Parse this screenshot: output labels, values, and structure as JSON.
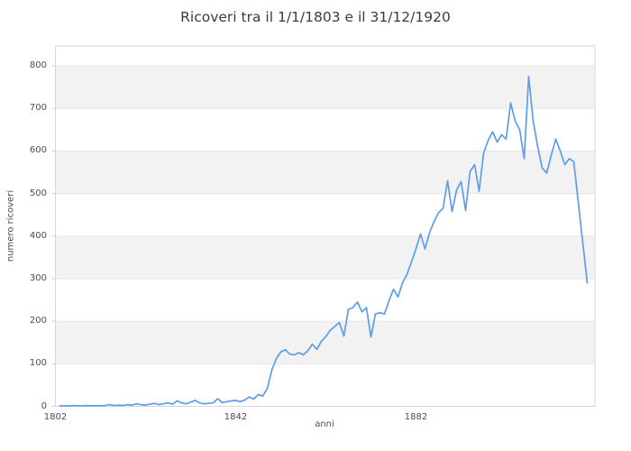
{
  "title": "Ricoveri tra il 1/1/1803 e il 31/12/1920",
  "axes": {
    "x_label": "anni",
    "y_label": "numero ricoveri",
    "x_tick_labels": [
      "1802",
      "1842",
      "1882"
    ],
    "y_tick_labels": [
      "0",
      "100",
      "200",
      "300",
      "400",
      "500",
      "600",
      "700",
      "800"
    ]
  },
  "colors": {
    "line": "#5f9cea",
    "band": "#f2f2f2",
    "grid": "#e7e7e7",
    "border": "#d6d6d6",
    "tick_mark": "#cfcfcf",
    "title_text": "#3c3c3c",
    "label_text": "#4d4d4d",
    "background": "#ffffff"
  },
  "chart_data": {
    "type": "line",
    "title": "Ricoveri tra il 1/1/1803 e il 31/12/1920",
    "xlabel": "anni",
    "ylabel": "numero ricoveri",
    "xlim": [
      1802,
      1922
    ],
    "ylim": [
      0,
      800
    ],
    "x_ticks": [
      1802,
      1842,
      1882
    ],
    "y_ticks": [
      0,
      100,
      200,
      300,
      400,
      500,
      600,
      700,
      800
    ],
    "grid": "horizontal-bands-alternating",
    "legend": "none",
    "series": [
      {
        "name": "ricoveri",
        "x": [
          1803,
          1804,
          1805,
          1806,
          1807,
          1808,
          1809,
          1810,
          1811,
          1812,
          1813,
          1814,
          1815,
          1816,
          1817,
          1818,
          1819,
          1820,
          1821,
          1822,
          1823,
          1824,
          1825,
          1826,
          1827,
          1828,
          1829,
          1830,
          1831,
          1832,
          1833,
          1834,
          1835,
          1836,
          1837,
          1838,
          1839,
          1840,
          1841,
          1842,
          1843,
          1844,
          1845,
          1846,
          1847,
          1848,
          1849,
          1850,
          1851,
          1852,
          1853,
          1854,
          1855,
          1856,
          1857,
          1858,
          1859,
          1860,
          1861,
          1862,
          1863,
          1864,
          1865,
          1866,
          1867,
          1868,
          1869,
          1870,
          1871,
          1872,
          1873,
          1874,
          1875,
          1876,
          1877,
          1878,
          1879,
          1880,
          1881,
          1882,
          1883,
          1884,
          1885,
          1886,
          1887,
          1888,
          1889,
          1890,
          1891,
          1892,
          1893,
          1894,
          1895,
          1896,
          1897,
          1898,
          1899,
          1900,
          1901,
          1902,
          1903,
          1904,
          1905,
          1906,
          1907,
          1908,
          1909,
          1910,
          1911,
          1912,
          1913,
          1914,
          1915,
          1916,
          1917,
          1918,
          1919,
          1920
        ],
        "values": [
          1,
          1,
          1,
          2,
          1,
          1,
          2,
          1,
          2,
          1,
          2,
          4,
          2,
          3,
          2,
          4,
          3,
          6,
          4,
          3,
          5,
          7,
          4,
          6,
          8,
          5,
          13,
          8,
          6,
          10,
          14,
          8,
          6,
          7,
          8,
          18,
          9,
          11,
          13,
          14,
          11,
          15,
          22,
          17,
          28,
          24,
          42,
          85,
          112,
          128,
          133,
          123,
          121,
          126,
          121,
          131,
          146,
          134,
          153,
          164,
          179,
          188,
          197,
          165,
          228,
          232,
          245,
          222,
          232,
          163,
          217,
          220,
          217,
          248,
          275,
          257,
          290,
          310,
          340,
          370,
          405,
          370,
          408,
          434,
          455,
          465,
          530,
          458,
          508,
          528,
          460,
          552,
          568,
          505,
          595,
          625,
          645,
          621,
          638,
          628,
          713,
          670,
          650,
          582,
          775,
          670,
          610,
          560,
          548,
          590,
          628,
          600,
          568,
          582,
          575,
          480,
          385,
          290
        ]
      }
    ]
  }
}
